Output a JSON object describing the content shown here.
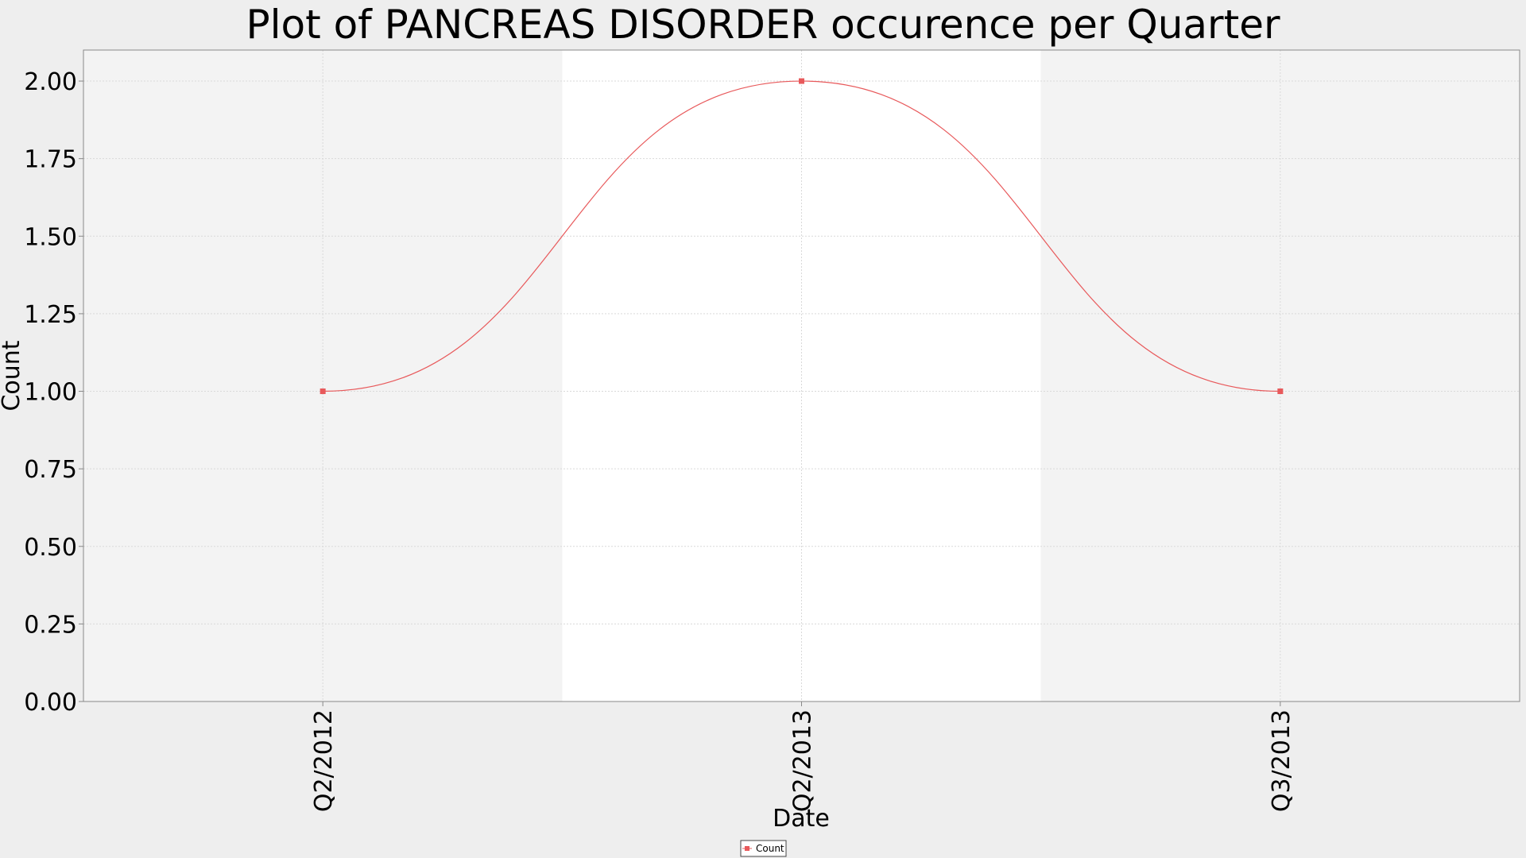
{
  "chart_data": {
    "type": "line",
    "title": "Plot of PANCREAS DISORDER occurence per Quarter",
    "xlabel": "Date",
    "ylabel": "Count",
    "categories": [
      "Q2/2012",
      "Q2/2013",
      "Q3/2013"
    ],
    "series": [
      {
        "name": "Count",
        "values": [
          1.0,
          2.0,
          1.0
        ],
        "color": "#e8595b"
      }
    ],
    "ylim": [
      0,
      2.1
    ],
    "yticks": [
      "0.00",
      "0.25",
      "0.50",
      "0.75",
      "1.00",
      "1.25",
      "1.50",
      "1.75",
      "2.00"
    ],
    "smoothing": "spline",
    "grid": true,
    "alternating_bands": true,
    "legend_position": "bottom-center",
    "colors": {
      "background": "#eeeeee",
      "plot_band_a": "#f3f3f3",
      "plot_band_b": "#ffffff",
      "grid": "#d9d9d9",
      "axis": "#888888",
      "series": "#e8595b"
    }
  }
}
